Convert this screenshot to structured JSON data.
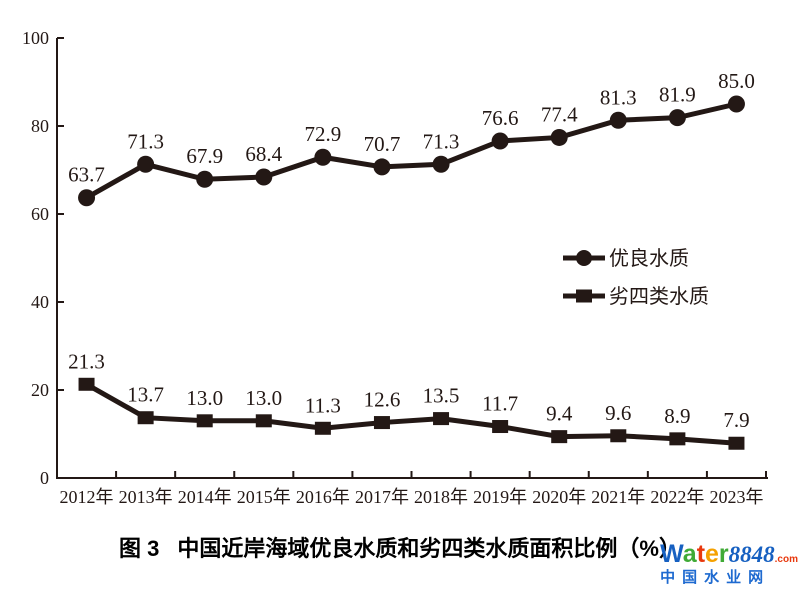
{
  "caption": {
    "figure_label": "图 3",
    "text": "中国近岸海域优良水质和劣四类水质面积比例（%）"
  },
  "chart_data": {
    "type": "line",
    "title": "图 3 中国近岸海域优良水质和劣四类水质面积比例（%）",
    "xlabel": "",
    "ylabel": "",
    "categories": [
      "2012年",
      "2013年",
      "2014年",
      "2015年",
      "2016年",
      "2017年",
      "2018年",
      "2019年",
      "2020年",
      "2021年",
      "2022年",
      "2023年"
    ],
    "series": [
      {
        "name": "优良水质",
        "marker": "circle",
        "values": [
          63.7,
          71.3,
          67.9,
          68.4,
          72.9,
          70.7,
          71.3,
          76.6,
          77.4,
          81.3,
          81.9,
          85.0
        ]
      },
      {
        "name": "劣四类水质",
        "marker": "square",
        "values": [
          21.3,
          13.7,
          13.0,
          13.0,
          11.3,
          12.6,
          13.5,
          11.7,
          9.4,
          9.6,
          8.9,
          7.9
        ]
      }
    ],
    "ylim": [
      0,
      100
    ],
    "yticks": [
      0,
      20,
      40,
      60,
      80,
      100
    ],
    "grid": false,
    "legend_position": "middle-right",
    "line_color": "#231815",
    "data_labels": true
  },
  "watermark": {
    "brand_letters": [
      {
        "ch": "W",
        "color": "#1660c1"
      },
      {
        "ch": "a",
        "color": "#3faa36"
      },
      {
        "ch": "t",
        "color": "#e8380d"
      },
      {
        "ch": "e",
        "color": "#f5a100"
      },
      {
        "ch": "r",
        "color": "#3faa36"
      }
    ],
    "number": "8848",
    "number_color": "#1660c1",
    "tld": ".com",
    "tld_color": "#e8380d",
    "site_name": "中国水业网",
    "site_color": "#1e6ad0"
  }
}
